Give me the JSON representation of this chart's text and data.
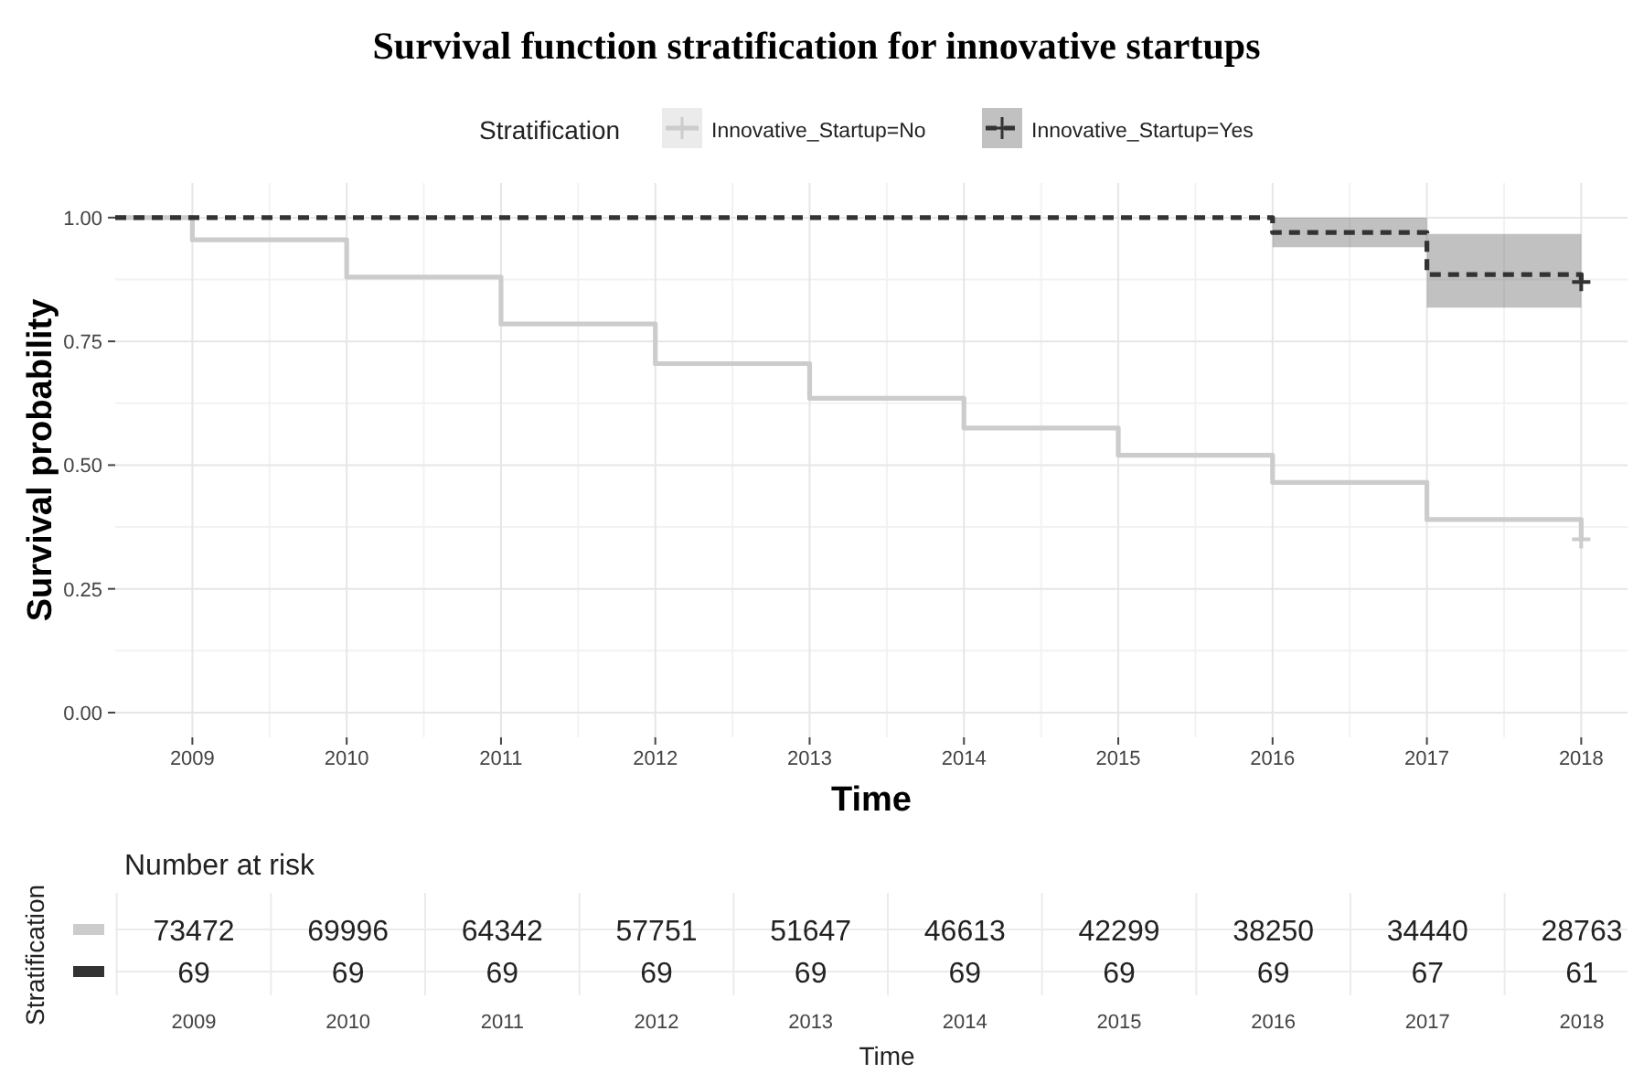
{
  "chart_data": [
    {
      "type": "step",
      "title": "Survival function stratification for innovative startups",
      "xlabel": "Time",
      "ylabel": "Survival probability",
      "legend_title": "Stratification",
      "legend": "top",
      "grid": true,
      "xlim": [
        2008.5,
        2018.3
      ],
      "xticks": [
        2009,
        2010,
        2011,
        2012,
        2013,
        2014,
        2015,
        2016,
        2017,
        2018
      ],
      "ylim": [
        -0.05,
        1.07
      ],
      "yticks": [
        {
          "value": 0,
          "label": "0.00"
        },
        {
          "value": 0.25,
          "label": "0.25"
        },
        {
          "value": 0.5,
          "label": "0.50"
        },
        {
          "value": 0.75,
          "label": "0.75"
        },
        {
          "value": 1,
          "label": "1.00"
        }
      ],
      "x": [
        2008.5,
        2009,
        2010,
        2011,
        2012,
        2013,
        2014,
        2015,
        2016,
        2017,
        2018
      ],
      "series": [
        {
          "name": "Innovative_Startup=No",
          "color": "#cccccc",
          "line_style": "solid",
          "values": [
            1,
            0.955,
            0.88,
            0.785,
            0.705,
            0.635,
            0.575,
            0.52,
            0.465,
            0.39,
            0.35
          ]
        },
        {
          "name": "Innovative_Startup=Yes",
          "color": "#333333",
          "line_style": "dashed",
          "values": [
            1,
            1,
            1,
            1,
            1,
            1,
            1,
            1,
            0.97,
            0.885,
            0.87
          ],
          "lower": [
            null,
            null,
            null,
            null,
            null,
            null,
            null,
            null,
            0.94,
            0.818,
            0.818
          ],
          "upper": [
            null,
            null,
            null,
            null,
            null,
            null,
            null,
            null,
            1,
            0.967,
            0.967
          ]
        },
        {
          "type": "scatter",
          "marker": "cross",
          "color": "#cccccc",
          "x": [
            2018
          ],
          "values": [
            0.35
          ]
        },
        {
          "type": "scatter",
          "marker": "cross",
          "color": "#333333",
          "x": [
            2018
          ],
          "values": [
            0.87
          ]
        }
      ]
    },
    {
      "type": "heatmap",
      "title": "Number at risk",
      "xlabel": "Time",
      "ylabel": "Stratification",
      "data_labels": true,
      "categories": [
        "2009",
        "2010",
        "2011",
        "2012",
        "2013",
        "2014",
        "2015",
        "2016",
        "2017",
        "2018"
      ],
      "y_categories": [
        null,
        null
      ],
      "cells": [
        [
          73472,
          69996,
          64342,
          57751,
          51647,
          46613,
          42299,
          38250,
          34440,
          28763
        ],
        [
          69,
          69,
          69,
          69,
          69,
          69,
          69,
          69,
          67,
          61
        ]
      ]
    }
  ]
}
